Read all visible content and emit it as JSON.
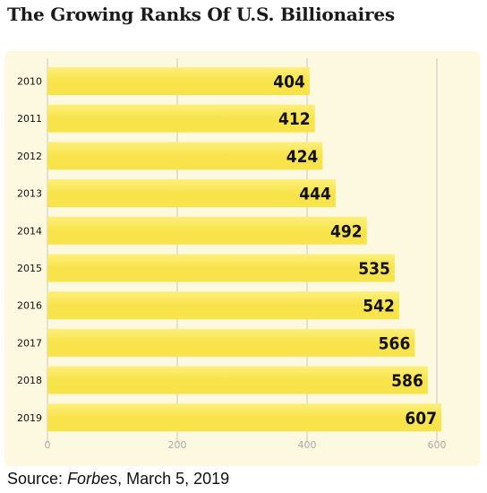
{
  "title": "The Growing Ranks Of U.S. Billionaires",
  "source": {
    "label": "Source:",
    "publication": "Forbes",
    "date": ", March 5, 2019"
  },
  "colors": {
    "bar": "#f8e34a",
    "bar_highlight": "#fdef7a",
    "panel": "#fdf9e0",
    "grid": "#c8c8c8",
    "label": "#111111",
    "tick": "#aaaaaa"
  },
  "chart_data": {
    "type": "bar",
    "orientation": "horizontal",
    "categories": [
      "2010",
      "2011",
      "2012",
      "2013",
      "2014",
      "2015",
      "2016",
      "2017",
      "2018",
      "2019"
    ],
    "values": [
      404,
      412,
      424,
      444,
      492,
      535,
      542,
      566,
      586,
      607
    ],
    "title": "The Growing Ranks Of U.S. Billionaires",
    "xlabel": "",
    "ylabel": "",
    "xlim": [
      0,
      600
    ],
    "xticks": [
      0,
      200,
      400,
      600
    ],
    "grid": true,
    "legend": "none"
  }
}
